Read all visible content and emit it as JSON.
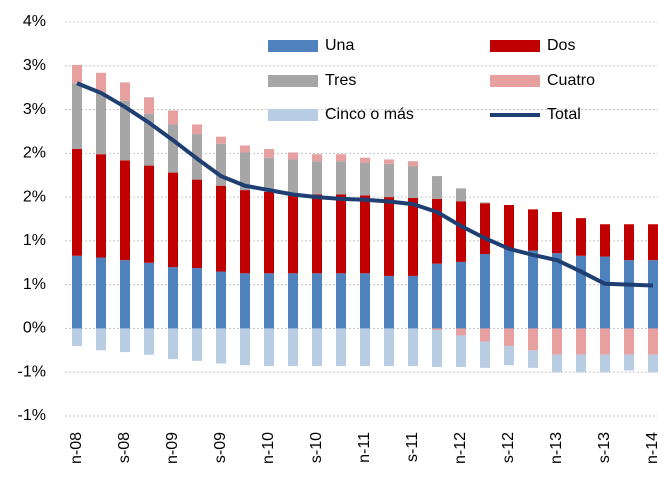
{
  "chart_data": {
    "type": "stacked_bar_line",
    "categories": [
      "n-08",
      null,
      "s-08",
      null,
      "n-09",
      null,
      "s-09",
      null,
      "n-10",
      null,
      "s-10",
      null,
      "n-11",
      null,
      "s-11",
      null,
      "n-12",
      null,
      "s-12",
      null,
      "n-13",
      null,
      "s-13",
      null,
      "n-14"
    ],
    "series": [
      {
        "name": "Una",
        "color": "#4f81bd",
        "values": [
          0.83,
          0.81,
          0.78,
          0.75,
          0.7,
          0.69,
          0.65,
          0.63,
          0.63,
          0.63,
          0.63,
          0.63,
          0.63,
          0.6,
          0.6,
          0.74,
          0.76,
          0.85,
          0.9,
          0.89,
          0.86,
          0.83,
          0.82,
          0.78,
          0.78
        ]
      },
      {
        "name": "Dos",
        "color": "#c00000",
        "values": [
          1.22,
          1.18,
          1.14,
          1.11,
          1.08,
          1.01,
          0.98,
          0.95,
          0.93,
          0.9,
          0.9,
          0.9,
          0.89,
          0.9,
          0.89,
          0.74,
          0.69,
          0.58,
          0.51,
          0.47,
          0.47,
          0.43,
          0.37,
          0.41,
          0.41
        ]
      },
      {
        "name": "Tres",
        "color": "#a6a6a6",
        "values": [
          0.75,
          0.7,
          0.68,
          0.59,
          0.55,
          0.52,
          0.48,
          0.43,
          0.39,
          0.4,
          0.38,
          0.38,
          0.37,
          0.38,
          0.36,
          0.26,
          0.15,
          0.01,
          0,
          0,
          0,
          0,
          0,
          0,
          0
        ]
      },
      {
        "name": "Cuatro",
        "color": "#e6a0a0",
        "values": [
          0.21,
          0.23,
          0.21,
          0.19,
          0.16,
          0.11,
          0.08,
          0.08,
          0.1,
          0.08,
          0.08,
          0.08,
          0.06,
          0.05,
          0.06,
          -0.02,
          -0.08,
          -0.15,
          -0.2,
          -0.25,
          -0.3,
          -0.3,
          -0.3,
          -0.3,
          -0.3
        ]
      },
      {
        "name": "Cinco o más",
        "color": "#b8cce4",
        "values": [
          -0.2,
          -0.25,
          -0.27,
          -0.3,
          -0.35,
          -0.37,
          -0.4,
          -0.42,
          -0.43,
          -0.43,
          -0.43,
          -0.43,
          -0.43,
          -0.43,
          -0.43,
          -0.42,
          -0.36,
          -0.3,
          -0.22,
          -0.2,
          -0.2,
          -0.2,
          -0.2,
          -0.18,
          -0.2
        ]
      },
      {
        "name": "Total",
        "color": "#1f3f73",
        "type": "line",
        "values": [
          2.8,
          2.69,
          2.53,
          2.35,
          2.15,
          1.94,
          1.74,
          1.63,
          1.58,
          1.53,
          1.5,
          1.48,
          1.47,
          1.45,
          1.42,
          1.33,
          1.17,
          1.03,
          0.91,
          0.84,
          0.78,
          0.65,
          0.51,
          0.5,
          0.49
        ]
      }
    ],
    "ylim": [
      -1.0,
      3.5
    ],
    "yticks": [
      {
        "value": 3.5,
        "label": "4%"
      },
      {
        "value": 3.0,
        "label": "3%"
      },
      {
        "value": 2.5,
        "label": "3%"
      },
      {
        "value": 2.0,
        "label": "2%"
      },
      {
        "value": 1.5,
        "label": "2%"
      },
      {
        "value": 1.0,
        "label": "1%"
      },
      {
        "value": 0.5,
        "label": "1%"
      },
      {
        "value": 0,
        "label": "0%"
      },
      {
        "value": -0.5,
        "label": "-1%"
      },
      {
        "value": -1.0,
        "label": "-1%"
      }
    ],
    "grid": true
  }
}
